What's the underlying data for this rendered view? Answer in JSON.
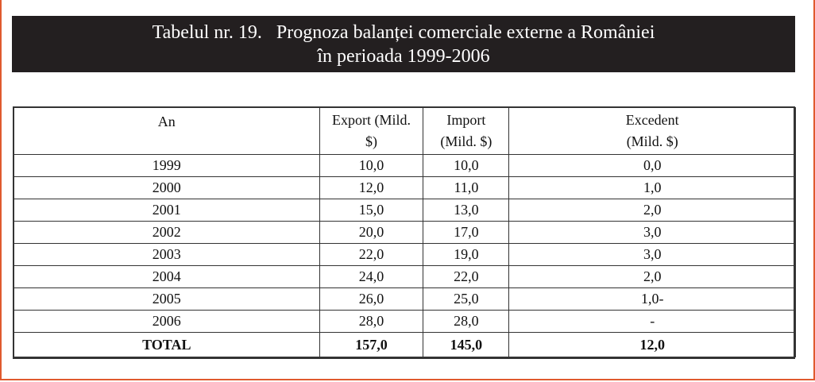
{
  "caption": {
    "line1": "Tabelul nr. 19.   Prognoza balanței comerciale externe a României",
    "line2": "în perioada 1999-2006"
  },
  "table": {
    "headers": [
      "An",
      "Export (Mild. $)",
      "Import (Mild. $)",
      "Excedent (Mild. $)"
    ],
    "header_lines": [
      [
        "An",
        ""
      ],
      [
        "Export (Mild.",
        "$)"
      ],
      [
        "Import",
        "(Mild. $)"
      ],
      [
        "Excedent",
        "(Mild. $)"
      ]
    ],
    "rows": [
      [
        "1999",
        "10,0",
        "10,0",
        "0,0"
      ],
      [
        "2000",
        "12,0",
        "11,0",
        "1,0"
      ],
      [
        "2001",
        "15,0",
        "13,0",
        "2,0"
      ],
      [
        "2002",
        "20,0",
        "17,0",
        "3,0"
      ],
      [
        "2003",
        "22,0",
        "19,0",
        "3,0"
      ],
      [
        "2004",
        "24,0",
        "22,0",
        "2,0"
      ],
      [
        "2005",
        "26,0",
        "25,0",
        "1,0-"
      ],
      [
        "2006",
        "28,0",
        "28,0",
        "-"
      ]
    ],
    "total": [
      "TOTAL",
      "157,0",
      "145,0",
      "12,0"
    ]
  },
  "colors": {
    "caption_bg": "#231f20",
    "caption_text": "#ffffff",
    "frame_border": "#e05a2e"
  }
}
